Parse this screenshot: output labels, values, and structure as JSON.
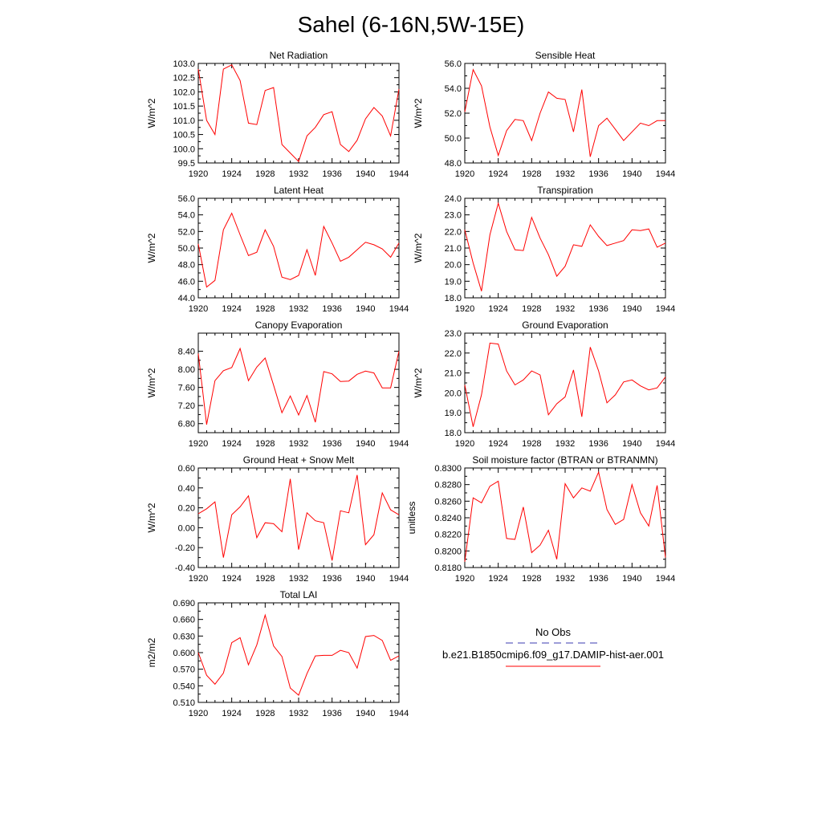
{
  "page_title": "Sahel (6-16N,5W-15E)",
  "legend": {
    "obs_label": "No Obs",
    "obs_color": "#3b3bb0",
    "model_label": "b.e21.B1850cmip6.f09_g17.DAMIP-hist-aer.001",
    "model_color": "#ff0000"
  },
  "chart_data": [
    {
      "type": "line",
      "title": "Net Radiation",
      "ylabel": "W/m^2",
      "xlim": [
        1920,
        1944
      ],
      "ylim": [
        99.5,
        103.0
      ],
      "yticks": [
        "99.5",
        "100.0",
        "100.5",
        "101.0",
        "101.5",
        "102.0",
        "102.5",
        "103.0"
      ],
      "xticks": [
        "1920",
        "1924",
        "1928",
        "1932",
        "1936",
        "1940",
        "1944"
      ],
      "series": [
        {
          "color": "#ff0000",
          "x": [
            1920,
            1921,
            1922,
            1923,
            1924,
            1925,
            1926,
            1927,
            1928,
            1929,
            1930,
            1931,
            1932,
            1933,
            1934,
            1935,
            1936,
            1937,
            1938,
            1939,
            1940,
            1941,
            1942,
            1943,
            1944
          ],
          "values": [
            102.8,
            101.0,
            100.5,
            102.8,
            102.95,
            102.4,
            100.9,
            100.85,
            102.05,
            102.15,
            100.15,
            99.85,
            99.55,
            100.45,
            100.75,
            101.2,
            101.3,
            100.15,
            99.9,
            100.3,
            101.05,
            101.45,
            101.15,
            100.45,
            102.1
          ]
        }
      ]
    },
    {
      "type": "line",
      "title": "Sensible Heat",
      "ylabel": "W/m^2",
      "xlim": [
        1920,
        1944
      ],
      "ylim": [
        48.0,
        56.0
      ],
      "yticks": [
        "48.0",
        "50.0",
        "52.0",
        "54.0",
        "56.0"
      ],
      "xticks": [
        "1920",
        "1924",
        "1928",
        "1932",
        "1936",
        "1940",
        "1944"
      ],
      "series": [
        {
          "color": "#ff0000",
          "x": [
            1920,
            1921,
            1922,
            1923,
            1924,
            1925,
            1926,
            1927,
            1928,
            1929,
            1930,
            1931,
            1932,
            1933,
            1934,
            1935,
            1936,
            1937,
            1938,
            1939,
            1940,
            1941,
            1942,
            1943,
            1944
          ],
          "values": [
            52.1,
            55.5,
            54.2,
            50.9,
            48.6,
            50.6,
            51.5,
            51.4,
            49.8,
            52.0,
            53.7,
            53.2,
            53.1,
            50.5,
            53.9,
            48.5,
            51.0,
            51.6,
            50.7,
            49.8,
            50.5,
            51.2,
            51.0,
            51.4,
            51.4
          ]
        }
      ]
    },
    {
      "type": "line",
      "title": "Latent Heat",
      "ylabel": "W/m^2",
      "xlim": [
        1920,
        1944
      ],
      "ylim": [
        44.0,
        56.0
      ],
      "yticks": [
        "44.0",
        "46.0",
        "48.0",
        "50.0",
        "52.0",
        "54.0",
        "56.0"
      ],
      "xticks": [
        "1920",
        "1924",
        "1928",
        "1932",
        "1936",
        "1940",
        "1944"
      ],
      "series": [
        {
          "color": "#ff0000",
          "x": [
            1920,
            1921,
            1922,
            1923,
            1924,
            1925,
            1926,
            1927,
            1928,
            1929,
            1930,
            1931,
            1932,
            1933,
            1934,
            1935,
            1936,
            1937,
            1938,
            1939,
            1940,
            1941,
            1942,
            1943,
            1944
          ],
          "values": [
            50.5,
            45.3,
            46.1,
            52.2,
            54.2,
            51.6,
            49.1,
            49.5,
            52.2,
            50.2,
            46.5,
            46.2,
            46.7,
            49.8,
            46.7,
            52.6,
            50.6,
            48.4,
            48.9,
            49.8,
            50.7,
            50.4,
            49.9,
            48.9,
            50.6
          ]
        }
      ]
    },
    {
      "type": "line",
      "title": "Transpiration",
      "ylabel": "W/m^2",
      "xlim": [
        1920,
        1944
      ],
      "ylim": [
        18.0,
        24.0
      ],
      "yticks": [
        "18.0",
        "19.0",
        "20.0",
        "21.0",
        "22.0",
        "23.0",
        "24.0"
      ],
      "xticks": [
        "1920",
        "1924",
        "1928",
        "1932",
        "1936",
        "1940",
        "1944"
      ],
      "series": [
        {
          "color": "#ff0000",
          "x": [
            1920,
            1921,
            1922,
            1923,
            1924,
            1925,
            1926,
            1927,
            1928,
            1929,
            1930,
            1931,
            1932,
            1933,
            1934,
            1935,
            1936,
            1937,
            1938,
            1939,
            1940,
            1941,
            1942,
            1943,
            1944
          ],
          "values": [
            22.1,
            20.1,
            18.4,
            21.8,
            23.7,
            22.0,
            20.9,
            20.85,
            22.85,
            21.6,
            20.6,
            19.3,
            19.9,
            21.2,
            21.1,
            22.4,
            21.7,
            21.15,
            21.3,
            21.45,
            22.1,
            22.05,
            22.15,
            21.05,
            21.3
          ]
        }
      ]
    },
    {
      "type": "line",
      "title": "Canopy Evaporation",
      "ylabel": "W/m^2",
      "xlim": [
        1920,
        1944
      ],
      "ylim": [
        6.6,
        8.8
      ],
      "yticks": [
        "6.80",
        "7.20",
        "7.60",
        "8.00",
        "8.40"
      ],
      "ytickvals": [
        6.8,
        7.2,
        7.6,
        8.0,
        8.4
      ],
      "xticks": [
        "1920",
        "1924",
        "1928",
        "1932",
        "1936",
        "1940",
        "1944"
      ],
      "series": [
        {
          "color": "#ff0000",
          "x": [
            1920,
            1921,
            1922,
            1923,
            1924,
            1925,
            1926,
            1927,
            1928,
            1929,
            1930,
            1931,
            1932,
            1933,
            1934,
            1935,
            1936,
            1937,
            1938,
            1939,
            1940,
            1941,
            1942,
            1943,
            1944
          ],
          "values": [
            8.35,
            6.78,
            7.75,
            7.97,
            8.04,
            8.46,
            7.75,
            8.05,
            8.25,
            7.65,
            7.04,
            7.41,
            6.99,
            7.42,
            6.83,
            7.95,
            7.9,
            7.73,
            7.74,
            7.89,
            7.96,
            7.92,
            7.59,
            7.59,
            8.4
          ]
        }
      ]
    },
    {
      "type": "line",
      "title": "Ground Evaporation",
      "ylabel": "W/m^2",
      "xlim": [
        1920,
        1944
      ],
      "ylim": [
        18.0,
        23.0
      ],
      "yticks": [
        "18.0",
        "19.0",
        "20.0",
        "21.0",
        "22.0",
        "23.0"
      ],
      "xticks": [
        "1920",
        "1924",
        "1928",
        "1932",
        "1936",
        "1940",
        "1944"
      ],
      "series": [
        {
          "color": "#ff0000",
          "x": [
            1920,
            1921,
            1922,
            1923,
            1924,
            1925,
            1926,
            1927,
            1928,
            1929,
            1930,
            1931,
            1932,
            1933,
            1934,
            1935,
            1936,
            1937,
            1938,
            1939,
            1940,
            1941,
            1942,
            1943,
            1944
          ],
          "values": [
            20.4,
            18.3,
            19.9,
            22.5,
            22.45,
            21.1,
            20.4,
            20.65,
            21.1,
            20.9,
            18.9,
            19.45,
            19.8,
            21.15,
            18.8,
            22.3,
            21.1,
            19.5,
            19.9,
            20.55,
            20.65,
            20.35,
            20.15,
            20.25,
            20.8
          ]
        }
      ]
    },
    {
      "type": "line",
      "title": "Ground Heat + Snow Melt",
      "ylabel": "W/m^2",
      "xlim": [
        1920,
        1944
      ],
      "ylim": [
        -0.4,
        0.6
      ],
      "yticks": [
        "-0.40",
        "-0.20",
        "0.00",
        "0.20",
        "0.40",
        "0.60"
      ],
      "xticks": [
        "1920",
        "1924",
        "1928",
        "1932",
        "1936",
        "1940",
        "1944"
      ],
      "series": [
        {
          "color": "#ff0000",
          "x": [
            1920,
            1921,
            1922,
            1923,
            1924,
            1925,
            1926,
            1927,
            1928,
            1929,
            1930,
            1931,
            1932,
            1933,
            1934,
            1935,
            1936,
            1937,
            1938,
            1939,
            1940,
            1941,
            1942,
            1943,
            1944
          ],
          "values": [
            0.14,
            0.19,
            0.26,
            -0.3,
            0.13,
            0.21,
            0.32,
            -0.1,
            0.05,
            0.04,
            -0.04,
            0.49,
            -0.22,
            0.15,
            0.07,
            0.05,
            -0.33,
            0.17,
            0.15,
            0.53,
            -0.17,
            -0.07,
            0.35,
            0.18,
            0.13
          ]
        }
      ]
    },
    {
      "type": "line",
      "title": "Soil moisture factor (BTRAN or BTRANMN)",
      "ylabel": "unitless",
      "xlim": [
        1920,
        1944
      ],
      "ylim": [
        0.818,
        0.83
      ],
      "yticks": [
        "0.8180",
        "0.8200",
        "0.8220",
        "0.8240",
        "0.8260",
        "0.8280",
        "0.8300"
      ],
      "xticks": [
        "1920",
        "1924",
        "1928",
        "1932",
        "1936",
        "1940",
        "1944"
      ],
      "series": [
        {
          "color": "#ff0000",
          "x": [
            1920,
            1921,
            1922,
            1923,
            1924,
            1925,
            1926,
            1927,
            1928,
            1929,
            1930,
            1931,
            1932,
            1933,
            1934,
            1935,
            1936,
            1937,
            1938,
            1939,
            1940,
            1941,
            1942,
            1943,
            1944
          ],
          "values": [
            0.8187,
            0.8264,
            0.8258,
            0.8278,
            0.8284,
            0.8215,
            0.8214,
            0.8253,
            0.8198,
            0.8207,
            0.8225,
            0.819,
            0.8281,
            0.8264,
            0.8276,
            0.8272,
            0.8295,
            0.825,
            0.8232,
            0.8238,
            0.828,
            0.8246,
            0.823,
            0.8279,
            0.8192
          ]
        }
      ]
    },
    {
      "type": "line",
      "title": "Total LAI",
      "ylabel": "m2/m2",
      "xlim": [
        1920,
        1944
      ],
      "ylim": [
        0.51,
        0.69
      ],
      "yticks": [
        "0.510",
        "0.540",
        "0.570",
        "0.600",
        "0.630",
        "0.660",
        "0.690"
      ],
      "xticks": [
        "1920",
        "1924",
        "1928",
        "1932",
        "1936",
        "1940",
        "1944"
      ],
      "series": [
        {
          "color": "#ff0000",
          "x": [
            1920,
            1921,
            1922,
            1923,
            1924,
            1925,
            1926,
            1927,
            1928,
            1929,
            1930,
            1931,
            1932,
            1933,
            1934,
            1935,
            1936,
            1937,
            1938,
            1939,
            1940,
            1941,
            1942,
            1943,
            1944
          ],
          "values": [
            0.6,
            0.559,
            0.543,
            0.563,
            0.618,
            0.627,
            0.578,
            0.614,
            0.668,
            0.612,
            0.593,
            0.536,
            0.523,
            0.562,
            0.594,
            0.595,
            0.595,
            0.604,
            0.6,
            0.572,
            0.629,
            0.631,
            0.622,
            0.586,
            0.594
          ]
        }
      ]
    }
  ]
}
